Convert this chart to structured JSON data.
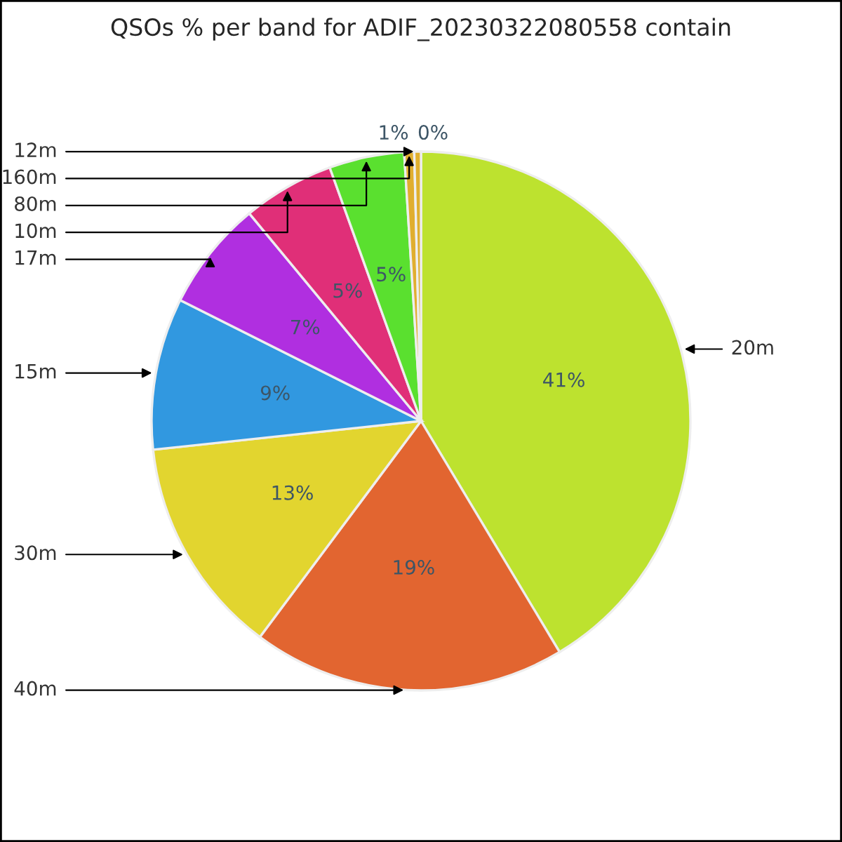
{
  "chart_data": {
    "type": "pie",
    "title": "QSOs % per band for ADIF_20230322080558 contain",
    "categories": [
      "20m",
      "40m",
      "30m",
      "15m",
      "17m",
      "10m",
      "80m",
      "160m",
      "12m"
    ],
    "values": [
      41.4,
      18.8,
      13.1,
      9.1,
      6.6,
      5.5,
      4.5,
      0.6,
      0.4
    ],
    "value_labels": [
      "41%",
      "19%",
      "13%",
      "9%",
      "7%",
      "5%",
      "5%",
      "1%",
      "0%"
    ],
    "colors": [
      "#bde22f",
      "#e26530",
      "#e2d52f",
      "#3198e0",
      "#b02fe0",
      "#e02f78",
      "#5ae02f",
      "#e0ae2f",
      "#e0b02f"
    ]
  }
}
